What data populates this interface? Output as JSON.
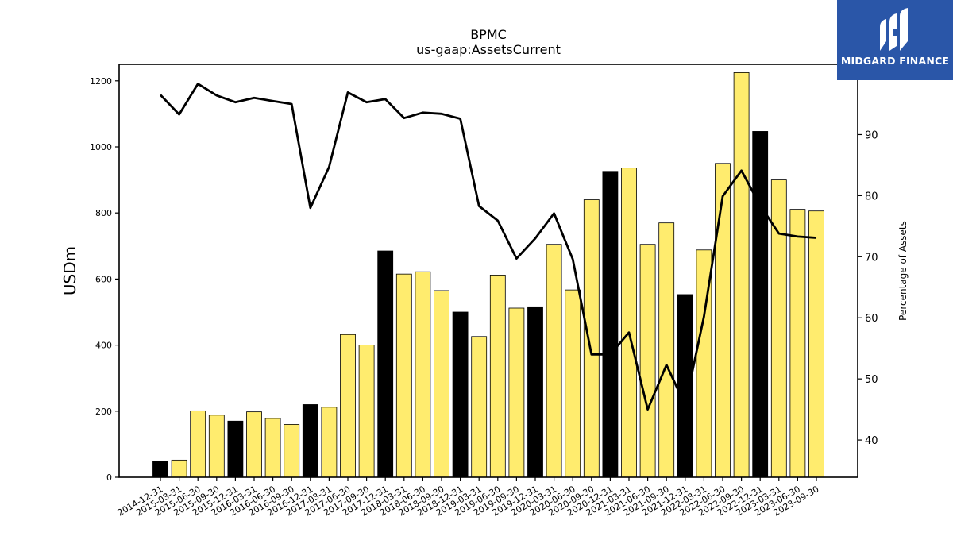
{
  "brand": {
    "name": "MIDGARD FINANCE",
    "bg_color": "#2a56a8"
  },
  "chart_data": {
    "type": "bar",
    "title": "BPMC",
    "subtitle": "us-gaap:AssetsCurrent",
    "ylabel": "USDm",
    "y2label": "Percentage of Assets",
    "ylim": [
      0,
      1250
    ],
    "y2lim": [
      33.9,
      101.5
    ],
    "yticks": [
      0,
      200,
      400,
      600,
      800,
      1000,
      1200
    ],
    "y2ticks": [
      40,
      50,
      60,
      70,
      80,
      90
    ],
    "grid": false,
    "colors": {
      "quarter": "#ffec6e",
      "year_end": "#000000",
      "line": "#000000"
    },
    "categories": [
      "2014-12-31",
      "2015-03-31",
      "2015-06-30",
      "2015-09-30",
      "2015-12-31",
      "2016-03-31",
      "2016-06-30",
      "2016-09-30",
      "2016-12-31",
      "2017-03-31",
      "2017-06-30",
      "2017-09-30",
      "2017-12-31",
      "2018-03-31",
      "2018-06-30",
      "2018-09-30",
      "2018-12-31",
      "2019-03-31",
      "2019-06-30",
      "2019-09-30",
      "2019-12-31",
      "2020-03-31",
      "2020-06-30",
      "2020-09-30",
      "2020-12-31",
      "2021-03-31",
      "2021-06-30",
      "2021-09-30",
      "2021-12-31",
      "2022-03-31",
      "2022-06-30",
      "2022-09-30",
      "2022-12-31",
      "2023-03-31",
      "2023-06-30",
      "2023-09-30"
    ],
    "series": [
      {
        "kind": "bar",
        "values": [
          48,
          52,
          201,
          188,
          170,
          198,
          178,
          160,
          220,
          212,
          432,
          400,
          685,
          615,
          622,
          565,
          500,
          426,
          612,
          512,
          516,
          705,
          567,
          840,
          926,
          936,
          705,
          770,
          553,
          688,
          950,
          1225,
          1047,
          900,
          811,
          806
        ]
      },
      {
        "kind": "line",
        "values": [
          96.5,
          93.3,
          98.3,
          96.4,
          95.3,
          96.0,
          95.5,
          95.0,
          78.0,
          84.7,
          96.9,
          95.3,
          95.8,
          92.7,
          93.6,
          93.4,
          92.6,
          78.3,
          75.9,
          69.7,
          73.0,
          77.1,
          69.6,
          54.0,
          54.0,
          57.6,
          45.0,
          52.3,
          45.7,
          60.2,
          79.9,
          84.1,
          78.4,
          73.8,
          73.3,
          73.1
        ]
      }
    ]
  }
}
